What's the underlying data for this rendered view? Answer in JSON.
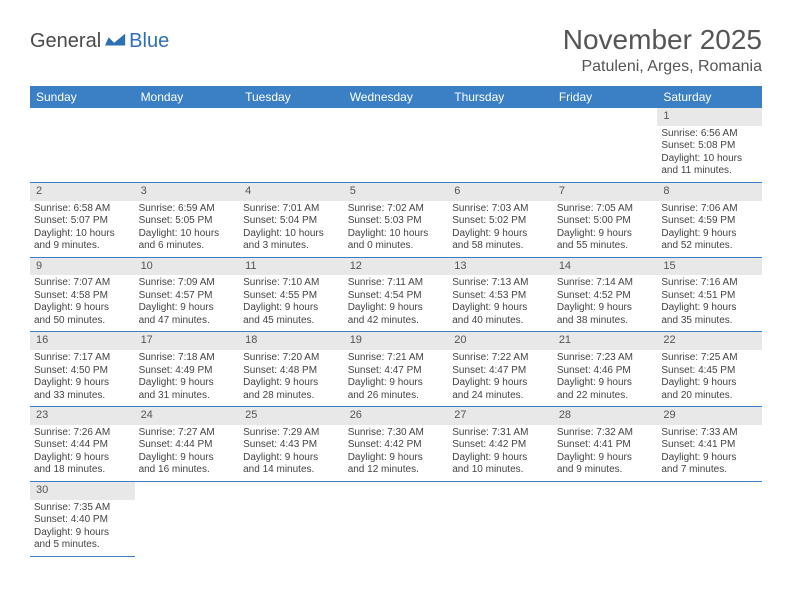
{
  "logo": {
    "part1": "General",
    "part2": "Blue"
  },
  "title": "November 2025",
  "location": "Patuleni, Arges, Romania",
  "weekdays": [
    "Sunday",
    "Monday",
    "Tuesday",
    "Wednesday",
    "Thursday",
    "Friday",
    "Saturday"
  ],
  "colors": {
    "header_bg": "#3b7fc4",
    "header_text": "#ffffff",
    "daynum_bg": "#e8e8e8",
    "border": "#3b7fc4",
    "logo_gray": "#4a4a4a",
    "logo_blue": "#2e6fb5"
  },
  "weeks": [
    [
      null,
      null,
      null,
      null,
      null,
      null,
      {
        "n": "1",
        "sr": "Sunrise: 6:56 AM",
        "ss": "Sunset: 5:08 PM",
        "d1": "Daylight: 10 hours",
        "d2": "and 11 minutes."
      }
    ],
    [
      {
        "n": "2",
        "sr": "Sunrise: 6:58 AM",
        "ss": "Sunset: 5:07 PM",
        "d1": "Daylight: 10 hours",
        "d2": "and 9 minutes."
      },
      {
        "n": "3",
        "sr": "Sunrise: 6:59 AM",
        "ss": "Sunset: 5:05 PM",
        "d1": "Daylight: 10 hours",
        "d2": "and 6 minutes."
      },
      {
        "n": "4",
        "sr": "Sunrise: 7:01 AM",
        "ss": "Sunset: 5:04 PM",
        "d1": "Daylight: 10 hours",
        "d2": "and 3 minutes."
      },
      {
        "n": "5",
        "sr": "Sunrise: 7:02 AM",
        "ss": "Sunset: 5:03 PM",
        "d1": "Daylight: 10 hours",
        "d2": "and 0 minutes."
      },
      {
        "n": "6",
        "sr": "Sunrise: 7:03 AM",
        "ss": "Sunset: 5:02 PM",
        "d1": "Daylight: 9 hours",
        "d2": "and 58 minutes."
      },
      {
        "n": "7",
        "sr": "Sunrise: 7:05 AM",
        "ss": "Sunset: 5:00 PM",
        "d1": "Daylight: 9 hours",
        "d2": "and 55 minutes."
      },
      {
        "n": "8",
        "sr": "Sunrise: 7:06 AM",
        "ss": "Sunset: 4:59 PM",
        "d1": "Daylight: 9 hours",
        "d2": "and 52 minutes."
      }
    ],
    [
      {
        "n": "9",
        "sr": "Sunrise: 7:07 AM",
        "ss": "Sunset: 4:58 PM",
        "d1": "Daylight: 9 hours",
        "d2": "and 50 minutes."
      },
      {
        "n": "10",
        "sr": "Sunrise: 7:09 AM",
        "ss": "Sunset: 4:57 PM",
        "d1": "Daylight: 9 hours",
        "d2": "and 47 minutes."
      },
      {
        "n": "11",
        "sr": "Sunrise: 7:10 AM",
        "ss": "Sunset: 4:55 PM",
        "d1": "Daylight: 9 hours",
        "d2": "and 45 minutes."
      },
      {
        "n": "12",
        "sr": "Sunrise: 7:11 AM",
        "ss": "Sunset: 4:54 PM",
        "d1": "Daylight: 9 hours",
        "d2": "and 42 minutes."
      },
      {
        "n": "13",
        "sr": "Sunrise: 7:13 AM",
        "ss": "Sunset: 4:53 PM",
        "d1": "Daylight: 9 hours",
        "d2": "and 40 minutes."
      },
      {
        "n": "14",
        "sr": "Sunrise: 7:14 AM",
        "ss": "Sunset: 4:52 PM",
        "d1": "Daylight: 9 hours",
        "d2": "and 38 minutes."
      },
      {
        "n": "15",
        "sr": "Sunrise: 7:16 AM",
        "ss": "Sunset: 4:51 PM",
        "d1": "Daylight: 9 hours",
        "d2": "and 35 minutes."
      }
    ],
    [
      {
        "n": "16",
        "sr": "Sunrise: 7:17 AM",
        "ss": "Sunset: 4:50 PM",
        "d1": "Daylight: 9 hours",
        "d2": "and 33 minutes."
      },
      {
        "n": "17",
        "sr": "Sunrise: 7:18 AM",
        "ss": "Sunset: 4:49 PM",
        "d1": "Daylight: 9 hours",
        "d2": "and 31 minutes."
      },
      {
        "n": "18",
        "sr": "Sunrise: 7:20 AM",
        "ss": "Sunset: 4:48 PM",
        "d1": "Daylight: 9 hours",
        "d2": "and 28 minutes."
      },
      {
        "n": "19",
        "sr": "Sunrise: 7:21 AM",
        "ss": "Sunset: 4:47 PM",
        "d1": "Daylight: 9 hours",
        "d2": "and 26 minutes."
      },
      {
        "n": "20",
        "sr": "Sunrise: 7:22 AM",
        "ss": "Sunset: 4:47 PM",
        "d1": "Daylight: 9 hours",
        "d2": "and 24 minutes."
      },
      {
        "n": "21",
        "sr": "Sunrise: 7:23 AM",
        "ss": "Sunset: 4:46 PM",
        "d1": "Daylight: 9 hours",
        "d2": "and 22 minutes."
      },
      {
        "n": "22",
        "sr": "Sunrise: 7:25 AM",
        "ss": "Sunset: 4:45 PM",
        "d1": "Daylight: 9 hours",
        "d2": "and 20 minutes."
      }
    ],
    [
      {
        "n": "23",
        "sr": "Sunrise: 7:26 AM",
        "ss": "Sunset: 4:44 PM",
        "d1": "Daylight: 9 hours",
        "d2": "and 18 minutes."
      },
      {
        "n": "24",
        "sr": "Sunrise: 7:27 AM",
        "ss": "Sunset: 4:44 PM",
        "d1": "Daylight: 9 hours",
        "d2": "and 16 minutes."
      },
      {
        "n": "25",
        "sr": "Sunrise: 7:29 AM",
        "ss": "Sunset: 4:43 PM",
        "d1": "Daylight: 9 hours",
        "d2": "and 14 minutes."
      },
      {
        "n": "26",
        "sr": "Sunrise: 7:30 AM",
        "ss": "Sunset: 4:42 PM",
        "d1": "Daylight: 9 hours",
        "d2": "and 12 minutes."
      },
      {
        "n": "27",
        "sr": "Sunrise: 7:31 AM",
        "ss": "Sunset: 4:42 PM",
        "d1": "Daylight: 9 hours",
        "d2": "and 10 minutes."
      },
      {
        "n": "28",
        "sr": "Sunrise: 7:32 AM",
        "ss": "Sunset: 4:41 PM",
        "d1": "Daylight: 9 hours",
        "d2": "and 9 minutes."
      },
      {
        "n": "29",
        "sr": "Sunrise: 7:33 AM",
        "ss": "Sunset: 4:41 PM",
        "d1": "Daylight: 9 hours",
        "d2": "and 7 minutes."
      }
    ],
    [
      {
        "n": "30",
        "sr": "Sunrise: 7:35 AM",
        "ss": "Sunset: 4:40 PM",
        "d1": "Daylight: 9 hours",
        "d2": "and 5 minutes."
      },
      null,
      null,
      null,
      null,
      null,
      null
    ]
  ]
}
